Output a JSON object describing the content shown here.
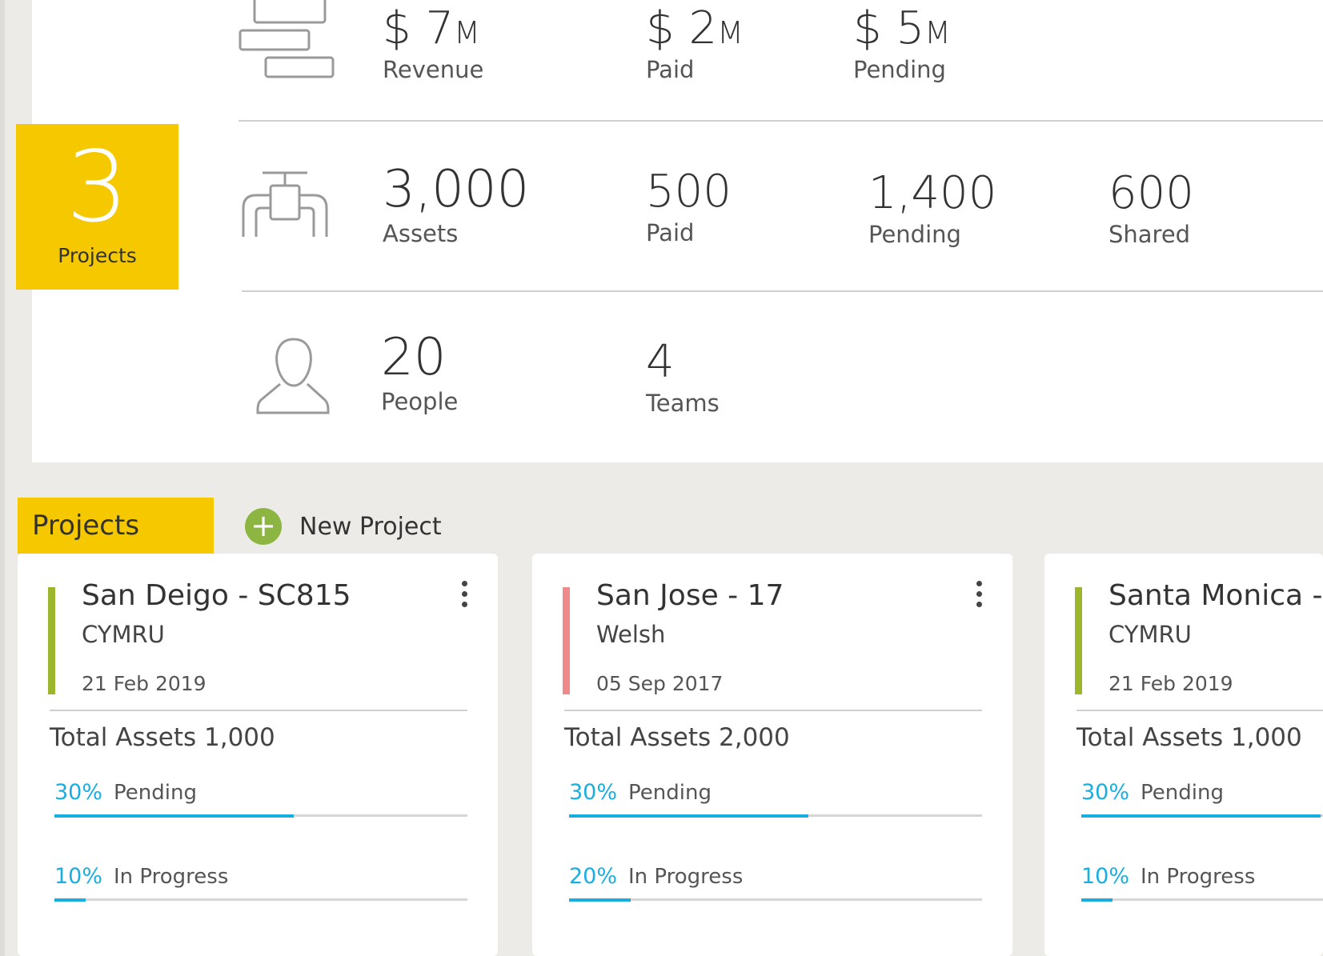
{
  "colors": {
    "accent_yellow": "#f5c800",
    "progress_blue": "#1aaee0",
    "add_green": "#8cb641",
    "status_green": "#9bb52c",
    "status_red": "#f08a8a"
  },
  "summary": {
    "projects_count": "3",
    "projects_label": "Projects",
    "revenue_row": {
      "icon": "stacked-bars-icon",
      "stats": [
        {
          "currency": "$ ",
          "value": "7",
          "unit": "M",
          "label": "Revenue"
        },
        {
          "currency": "$ ",
          "value": "2",
          "unit": "M",
          "label": "Paid"
        },
        {
          "currency": "$ ",
          "value": "5",
          "unit": "M",
          "label": "Pending"
        }
      ]
    },
    "assets_row": {
      "icon": "valve-pipe-icon",
      "stats": [
        {
          "value": "3,000",
          "label": "Assets"
        },
        {
          "value": "500",
          "label": "Paid"
        },
        {
          "value": "1,400",
          "label": "Pending"
        },
        {
          "value": "600",
          "label": "Shared"
        }
      ]
    },
    "people_row": {
      "icon": "person-icon",
      "stats": [
        {
          "value": "20",
          "label": "People"
        },
        {
          "value": "4",
          "label": "Teams"
        }
      ]
    }
  },
  "projects_section": {
    "tab_label": "Projects",
    "new_project_label": "New Project"
  },
  "cards": [
    {
      "title": "San Deigo - SC815",
      "subtitle": "CYMRU",
      "date": "21 Feb 2019",
      "status_color": "#9bb52c",
      "total_assets": "Total Assets 1,000",
      "progress": [
        {
          "percent": "30%",
          "label": "Pending",
          "fraction": 0.58
        },
        {
          "percent": "10%",
          "label": "In Progress",
          "fraction": 0.075
        }
      ]
    },
    {
      "title": "San Jose - 17",
      "subtitle": "Welsh",
      "date": "05 Sep 2017",
      "status_color": "#f08a8a",
      "total_assets": "Total Assets 2,000",
      "progress": [
        {
          "percent": "30%",
          "label": "Pending",
          "fraction": 0.58
        },
        {
          "percent": "20%",
          "label": "In Progress",
          "fraction": 0.15
        }
      ]
    },
    {
      "title": "Santa Monica - ",
      "subtitle": "CYMRU",
      "date": "21 Feb 2019",
      "status_color": "#9bb52c",
      "total_assets": "Total Assets 1,000",
      "progress": [
        {
          "percent": "30%",
          "label": "Pending",
          "fraction": 0.58
        },
        {
          "percent": "10%",
          "label": "In Progress",
          "fraction": 0.075
        }
      ]
    }
  ]
}
